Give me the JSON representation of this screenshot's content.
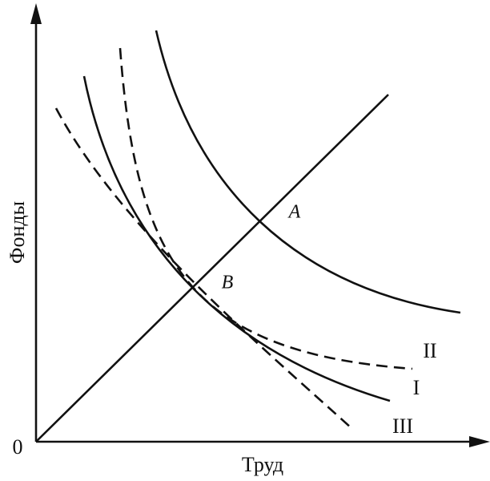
{
  "axes": {
    "y_label": "Фонды",
    "x_label": "Труд",
    "origin": "0"
  },
  "points": [
    {
      "label": "A"
    },
    {
      "label": "B"
    }
  ],
  "curves": [
    {
      "label": "I"
    },
    {
      "label": "II"
    },
    {
      "label": "III"
    }
  ]
}
